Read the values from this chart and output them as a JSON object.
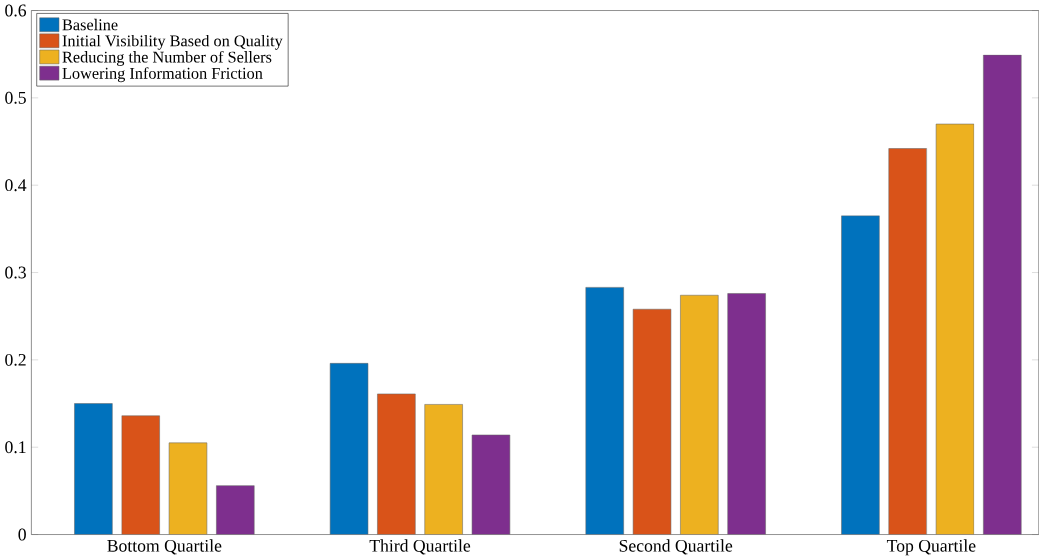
{
  "chart_data": {
    "type": "bar",
    "categories": [
      "Bottom Quartile",
      "Third Quartile",
      "Second Quartile",
      "Top Quartile"
    ],
    "series": [
      {
        "name": "Baseline",
        "color": "#0072bd",
        "values": [
          0.15,
          0.196,
          0.283,
          0.365
        ]
      },
      {
        "name": "Initial Visibility Based on Quality",
        "color": "#d95319",
        "values": [
          0.136,
          0.161,
          0.258,
          0.442
        ]
      },
      {
        "name": "Reducing the Number of Sellers",
        "color": "#edb120",
        "values": [
          0.105,
          0.149,
          0.274,
          0.47
        ]
      },
      {
        "name": "Lowering Information Friction",
        "color": "#7e2f8e",
        "values": [
          0.056,
          0.114,
          0.276,
          0.549
        ]
      }
    ],
    "ylim": [
      0,
      0.6
    ],
    "yticks": [
      0,
      0.1,
      0.2,
      0.3,
      0.4,
      0.5,
      0.6
    ],
    "legend": "top left"
  }
}
